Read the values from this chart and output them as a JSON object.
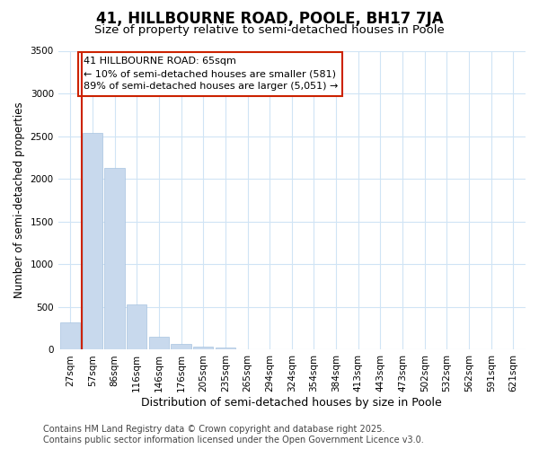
{
  "title": "41, HILLBOURNE ROAD, POOLE, BH17 7JA",
  "subtitle": "Size of property relative to semi-detached houses in Poole",
  "xlabel": "Distribution of semi-detached houses by size in Poole",
  "ylabel": "Number of semi-detached properties",
  "bar_color": "#c8d9ed",
  "bar_edge_color": "#a8c4e0",
  "categories": [
    "27sqm",
    "57sqm",
    "86sqm",
    "116sqm",
    "146sqm",
    "176sqm",
    "205sqm",
    "235sqm",
    "265sqm",
    "294sqm",
    "324sqm",
    "354sqm",
    "384sqm",
    "413sqm",
    "443sqm",
    "473sqm",
    "502sqm",
    "532sqm",
    "562sqm",
    "591sqm",
    "621sqm"
  ],
  "values": [
    320,
    2535,
    2130,
    530,
    155,
    65,
    40,
    30,
    0,
    0,
    0,
    0,
    0,
    0,
    0,
    0,
    0,
    0,
    0,
    0,
    0
  ],
  "ylim": [
    0,
    3500
  ],
  "yticks": [
    0,
    500,
    1000,
    1500,
    2000,
    2500,
    3000,
    3500
  ],
  "annotation_line1": "41 HILLBOURNE ROAD: 65sqm",
  "annotation_line2": "← 10% of semi-detached houses are smaller (581)",
  "annotation_line3": "89% of semi-detached houses are larger (5,051) →",
  "red_line_color": "#cc2200",
  "annotation_box_edge": "#cc2200",
  "background_color": "#ffffff",
  "grid_color": "#d0e4f5",
  "footer_line1": "Contains HM Land Registry data © Crown copyright and database right 2025.",
  "footer_line2": "Contains public sector information licensed under the Open Government Licence v3.0.",
  "title_fontsize": 12,
  "subtitle_fontsize": 9.5,
  "xlabel_fontsize": 9,
  "ylabel_fontsize": 8.5,
  "tick_fontsize": 7.5,
  "footer_fontsize": 7,
  "annotation_fontsize": 8
}
